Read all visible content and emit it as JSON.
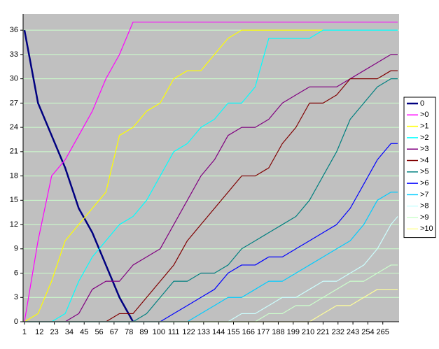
{
  "chart_data": {
    "type": "line",
    "x": [
      1,
      11,
      21,
      31,
      41,
      51,
      61,
      71,
      81,
      91,
      101,
      111,
      121,
      131,
      141,
      151,
      161,
      171,
      181,
      191,
      201,
      211,
      221,
      231,
      241,
      251,
      261,
      271,
      276
    ],
    "xlim": [
      0,
      277
    ],
    "xticks": [
      1,
      12,
      23,
      34,
      45,
      56,
      67,
      78,
      89,
      100,
      111,
      122,
      133,
      144,
      155,
      166,
      177,
      188,
      199,
      210,
      221,
      232,
      243,
      254,
      265
    ],
    "ylim": [
      0,
      38
    ],
    "yticks": [
      0,
      3,
      6,
      9,
      12,
      15,
      18,
      21,
      24,
      27,
      30,
      33,
      36
    ],
    "grid": true,
    "grid_color": "#ccffcc",
    "background": "#c0c0c0",
    "legend": "right",
    "series": [
      {
        "name": "0",
        "color": "#000080",
        "values": [
          36,
          27,
          23,
          19,
          14,
          11,
          7,
          3,
          0,
          null,
          null,
          null,
          null,
          null,
          null,
          null,
          null,
          null,
          null,
          null,
          null,
          null,
          null,
          null,
          null,
          null,
          null,
          null,
          null
        ]
      },
      {
        "name": ">0",
        "color": "#ff00ff",
        "values": [
          0,
          10,
          18,
          20,
          23,
          26,
          30,
          33,
          37,
          37,
          37,
          37,
          37,
          37,
          37,
          37,
          37,
          37,
          37,
          37,
          37,
          37,
          37,
          37,
          37,
          37,
          37,
          37,
          37
        ]
      },
      {
        "name": ">1",
        "color": "#ffff00",
        "values": [
          0,
          1,
          5,
          10,
          12,
          14,
          16,
          23,
          24,
          26,
          27,
          30,
          31,
          31,
          33,
          35,
          36,
          36,
          36,
          36,
          36,
          36,
          36,
          null,
          null,
          null,
          null,
          null,
          null
        ]
      },
      {
        "name": ">2",
        "color": "#00ffff",
        "values": [
          0,
          0,
          0,
          1,
          5,
          8,
          10,
          12,
          13,
          15,
          18,
          21,
          22,
          24,
          25,
          27,
          27,
          29,
          35,
          35,
          35,
          35,
          36,
          36,
          36,
          36,
          36,
          36,
          36
        ]
      },
      {
        "name": ">3",
        "color": "#800080",
        "values": [
          0,
          0,
          0,
          0,
          1,
          4,
          5,
          5,
          7,
          8,
          9,
          12,
          15,
          18,
          20,
          23,
          24,
          24,
          25,
          27,
          28,
          29,
          29,
          29,
          30,
          31,
          32,
          33,
          33
        ]
      },
      {
        "name": ">4",
        "color": "#800000",
        "values": [
          0,
          0,
          0,
          0,
          0,
          0,
          0,
          1,
          1,
          3,
          5,
          7,
          10,
          12,
          14,
          16,
          18,
          18,
          19,
          22,
          24,
          27,
          27,
          28,
          30,
          30,
          30,
          31,
          31
        ]
      },
      {
        "name": ">5",
        "color": "#008080",
        "values": [
          0,
          0,
          0,
          0,
          0,
          0,
          0,
          0,
          0,
          1,
          3,
          5,
          5,
          6,
          6,
          7,
          9,
          10,
          11,
          12,
          13,
          15,
          18,
          21,
          25,
          27,
          29,
          30,
          30
        ]
      },
      {
        "name": ">6",
        "color": "#0000ff",
        "values": [
          0,
          0,
          0,
          0,
          0,
          0,
          0,
          0,
          0,
          0,
          0,
          1,
          2,
          3,
          4,
          6,
          7,
          7,
          8,
          8,
          9,
          10,
          11,
          12,
          14,
          17,
          20,
          22,
          22
        ]
      },
      {
        "name": ">7",
        "color": "#00ccff",
        "values": [
          0,
          0,
          0,
          0,
          0,
          0,
          0,
          0,
          0,
          0,
          0,
          0,
          0,
          1,
          2,
          3,
          3,
          4,
          5,
          5,
          6,
          7,
          8,
          9,
          10,
          12,
          15,
          16,
          16
        ]
      },
      {
        "name": ">8",
        "color": "#ccffff",
        "values": [
          0,
          0,
          0,
          0,
          0,
          0,
          0,
          0,
          0,
          0,
          0,
          0,
          0,
          0,
          0,
          0,
          1,
          1,
          2,
          3,
          3,
          4,
          5,
          5,
          6,
          7,
          9,
          12,
          13
        ]
      },
      {
        "name": ">9",
        "color": "#ccffcc",
        "values": [
          0,
          0,
          0,
          0,
          0,
          0,
          0,
          0,
          0,
          0,
          0,
          0,
          0,
          0,
          0,
          0,
          0,
          0,
          1,
          1,
          2,
          2,
          3,
          4,
          5,
          5,
          6,
          7,
          7
        ]
      },
      {
        "name": ">10",
        "color": "#ffff99",
        "values": [
          0,
          0,
          0,
          0,
          0,
          0,
          0,
          0,
          0,
          0,
          0,
          0,
          0,
          0,
          0,
          0,
          0,
          0,
          0,
          0,
          0,
          0,
          1,
          2,
          2,
          3,
          4,
          4,
          4
        ]
      }
    ]
  }
}
